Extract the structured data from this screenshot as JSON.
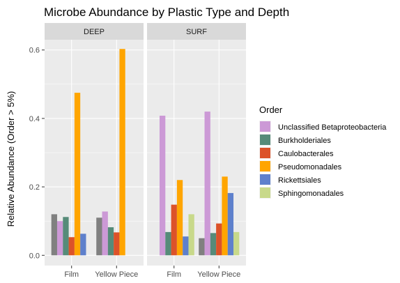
{
  "chart_data": {
    "type": "bar",
    "title": "Microbe Abundance by Plastic Type and Depth",
    "xlabel": "",
    "ylabel": "Relative Abundance (Order > 5%)",
    "ylim": [
      -0.03,
      0.63
    ],
    "yticks": [
      0.0,
      0.2,
      0.4,
      0.6
    ],
    "ytick_labels": [
      "0.0",
      "0.2",
      "0.4",
      "0.6"
    ],
    "grid": true,
    "categories": [
      "Film",
      "Yellow Piece"
    ],
    "legend": {
      "title": "Order",
      "position": "right"
    },
    "colors": {
      "unclassified": "#808080",
      "Unclassified Betaproteobacteria": "#cc99d6",
      "Burkholderiales": "#568b79",
      "Caulobacterales": "#dc5229",
      "Pseudomonadales": "#ffa500",
      "Rickettsiales": "#5e80cc",
      "Sphingomonadales": "#c8d98a"
    },
    "legend_entries": [
      "Unclassified Betaproteobacteria",
      "Burkholderiales",
      "Caulobacterales",
      "Pseudomonadales",
      "Rickettsiales",
      "Sphingomonadales"
    ],
    "panels": [
      {
        "label": "DEEP",
        "series": [
          {
            "name": "",
            "values": [
              0.12,
              0.11
            ]
          },
          {
            "name": "Unclassified Betaproteobacteria",
            "values": [
              0.1,
              0.128
            ]
          },
          {
            "name": "Burkholderiales",
            "values": [
              0.112,
              0.082
            ]
          },
          {
            "name": "Caulobacterales",
            "values": [
              0.053,
              0.067
            ]
          },
          {
            "name": "Pseudomonadales",
            "values": [
              0.475,
              0.603
            ]
          },
          {
            "name": "Rickettsiales",
            "values": [
              0.063,
              null
            ]
          },
          {
            "name": "Sphingomonadales",
            "values": [
              null,
              null
            ]
          }
        ]
      },
      {
        "label": "SURF",
        "series": [
          {
            "name": "",
            "values": [
              null,
              0.05
            ]
          },
          {
            "name": "Unclassified Betaproteobacteria",
            "values": [
              0.408,
              0.42
            ]
          },
          {
            "name": "Burkholderiales",
            "values": [
              0.068,
              0.065
            ]
          },
          {
            "name": "Caulobacterales",
            "values": [
              0.148,
              0.093
            ]
          },
          {
            "name": "Pseudomonadales",
            "values": [
              0.22,
              0.23
            ]
          },
          {
            "name": "Rickettsiales",
            "values": [
              0.055,
              0.182
            ]
          },
          {
            "name": "Sphingomonadales",
            "values": [
              0.12,
              0.068
            ]
          }
        ]
      }
    ]
  }
}
